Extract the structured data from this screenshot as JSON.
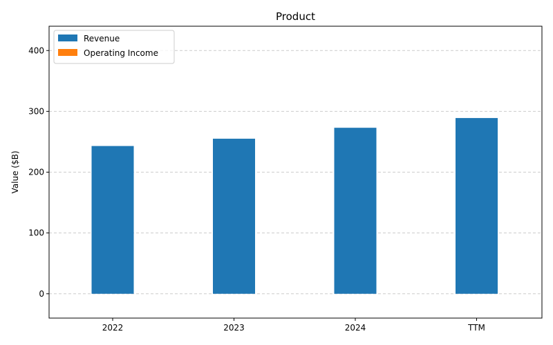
{
  "chart_data": {
    "type": "bar",
    "title": "Product",
    "xlabel": "",
    "ylabel": "Value ($B)",
    "categories": [
      "2022",
      "2023",
      "2024",
      "TTM"
    ],
    "ylim": [
      -40,
      440
    ],
    "yticks": [
      0,
      100,
      200,
      300,
      400
    ],
    "grid": "y-dashed",
    "legend_position": "top-left",
    "series": [
      {
        "name": "Revenue",
        "color": "#1f77b4",
        "values": [
          243,
          255,
          273,
          289
        ]
      },
      {
        "name": "Operating Income",
        "color": "#ff7f0e",
        "values": [
          0,
          0,
          0,
          0
        ]
      }
    ]
  }
}
